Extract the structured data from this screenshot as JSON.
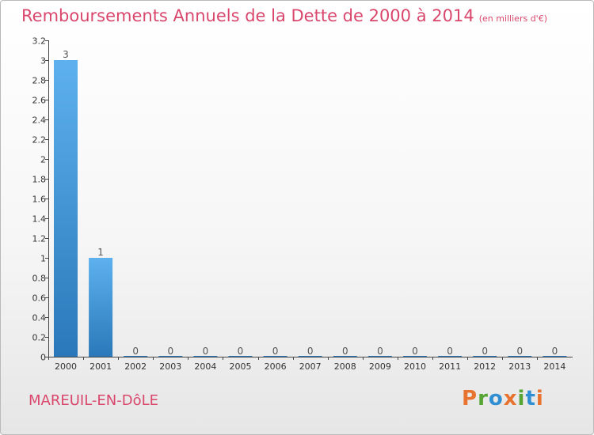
{
  "title": {
    "main": "Remboursements Annuels de la Dette de 2000 à 2014",
    "unit": "(en milliers d'€)"
  },
  "commune": "MAREUIL-EN-DôLE",
  "logo": {
    "text": "Proxiti",
    "letters": [
      {
        "ch": "P",
        "color": "#e8732f"
      },
      {
        "ch": "r",
        "color": "#56a434"
      },
      {
        "ch": "o",
        "color": "#2f8fd2"
      },
      {
        "ch": "x",
        "color": "#e8732f"
      },
      {
        "ch": "i",
        "color": "#56a434"
      },
      {
        "ch": "t",
        "color": "#2f8fd2"
      },
      {
        "ch": "i",
        "color": "#e8732f"
      }
    ]
  },
  "colors": {
    "title": "#d9476d",
    "bar_light": "#5db1ee",
    "bar_dark": "#2a78b9",
    "axis": "#444444"
  },
  "chart_data": {
    "type": "bar",
    "categories": [
      "2000",
      "2001",
      "2002",
      "2003",
      "2004",
      "2005",
      "2006",
      "2007",
      "2008",
      "2009",
      "2010",
      "2011",
      "2012",
      "2013",
      "2014"
    ],
    "values": [
      3,
      1,
      0,
      0,
      0,
      0,
      0,
      0,
      0,
      0,
      0,
      0,
      0,
      0,
      0
    ],
    "data_labels": [
      "3",
      "1",
      "0",
      "0",
      "0",
      "0",
      "0",
      "0",
      "0",
      "0",
      "0",
      "0",
      "0",
      "0",
      "0"
    ],
    "ylim": [
      0,
      3.2
    ],
    "yticks": [
      {
        "value": 0,
        "label": "0"
      },
      {
        "value": 0.2,
        "label": "0.2"
      },
      {
        "value": 0.4,
        "label": "0.4"
      },
      {
        "value": 0.6,
        "label": "0.6"
      },
      {
        "value": 0.8,
        "label": "0.8"
      },
      {
        "value": 1,
        "label": "1"
      },
      {
        "value": 1.2,
        "label": "1.2"
      },
      {
        "value": 1.4,
        "label": "1.4"
      },
      {
        "value": 1.6,
        "label": "1.6"
      },
      {
        "value": 1.8,
        "label": "1.8"
      },
      {
        "value": 2,
        "label": "2"
      },
      {
        "value": 2.2,
        "label": "2.2"
      },
      {
        "value": 2.4,
        "label": "2.4"
      },
      {
        "value": 2.6,
        "label": "2.6"
      },
      {
        "value": 2.8,
        "label": "2.8"
      },
      {
        "value": 3,
        "label": "3"
      },
      {
        "value": 3.2,
        "label": "3.2"
      }
    ],
    "grid": false,
    "legend": "none"
  }
}
